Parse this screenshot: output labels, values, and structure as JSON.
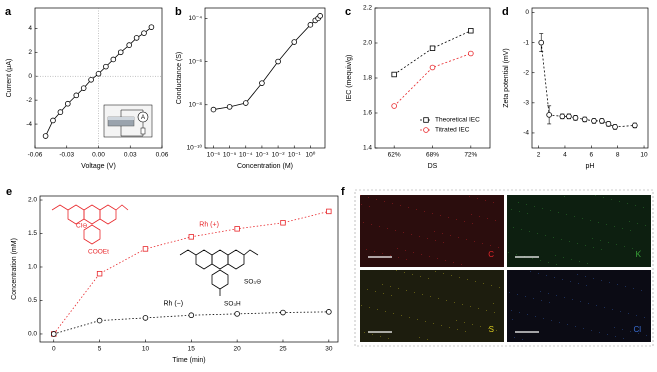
{
  "chart_data": [
    {
      "type": "line",
      "panel": "a",
      "xlabel": "Voltage (V)",
      "ylabel": "Current (μA)",
      "x": [
        -0.05,
        -0.043,
        -0.036,
        -0.029,
        -0.021,
        -0.014,
        -0.007,
        0,
        0.007,
        0.014,
        0.021,
        0.029,
        0.036,
        0.043,
        0.05
      ],
      "values": [
        -5.0,
        -3.7,
        -3.0,
        -2.3,
        -1.6,
        -1.0,
        -0.3,
        0.2,
        0.8,
        1.4,
        2.0,
        2.6,
        3.2,
        3.6,
        4.1
      ],
      "color": "#000000",
      "marker": "circle",
      "dash": "none",
      "xlim": [
        -0.06,
        0.06
      ],
      "ylim": [
        -6,
        5.7
      ],
      "xticks": [
        -0.06,
        -0.03,
        {
          "value": 0,
          "label": "0.00"
        },
        0.03,
        0.06
      ],
      "yticks": [
        -4,
        -2,
        0,
        2,
        4
      ],
      "zero_lines": true
    },
    {
      "type": "line",
      "panel": "b",
      "xlabel": "Concentration (M)",
      "ylabel": "Conductance (S)",
      "x": [
        1e-06,
        1e-05,
        0.0001,
        0.001,
        0.01,
        0.1,
        1,
        2,
        3,
        4
      ],
      "values": [
        6e-09,
        8e-09,
        1.2e-08,
        1e-07,
        1e-06,
        8e-06,
        5e-05,
        8e-05,
        0.0001,
        0.00013
      ],
      "color": "#000000",
      "marker": "circle",
      "dash": "none",
      "xlog": true,
      "ylog": true,
      "xlim": [
        3e-07,
        8
      ],
      "ylim": [
        1e-10,
        0.0003
      ],
      "xticks": [
        {
          "value": 1e-06,
          "label": "10⁻⁶"
        },
        {
          "value": 1e-05,
          "label": "10⁻⁵"
        },
        {
          "value": 0.0001,
          "label": "10⁻⁴"
        },
        {
          "value": 0.001,
          "label": "10⁻³"
        },
        {
          "value": 0.01,
          "label": "10⁻²"
        },
        {
          "value": 0.1,
          "label": "10⁻¹"
        },
        {
          "value": 1,
          "label": "10⁰"
        }
      ],
      "yticks": [
        {
          "value": 1e-10,
          "label": "10⁻¹⁰"
        },
        {
          "value": 1e-08,
          "label": "10⁻⁸"
        },
        {
          "value": 1e-06,
          "label": "10⁻⁶"
        },
        {
          "value": 0.0001,
          "label": "10⁻⁴"
        }
      ]
    },
    {
      "type": "line",
      "panel": "c",
      "xlabel": "DS",
      "ylabel": "IEC (mequiv/g)",
      "categories": [
        "62%",
        "68%",
        "72%"
      ],
      "series": [
        {
          "name": "Theoretical IEC",
          "color": "#000000",
          "marker": "square",
          "dash": "2,2",
          "values": [
            1.82,
            1.97,
            2.07
          ]
        },
        {
          "name": "Titrated IEC",
          "color": "#e8262a",
          "marker": "circle",
          "dash": "2,2",
          "values": [
            1.64,
            1.86,
            1.94
          ]
        }
      ],
      "ylim": [
        1.4,
        2.2
      ],
      "yticks": [
        1.4,
        1.6,
        1.8,
        {
          "value": 2,
          "label": "2.0"
        },
        2.2
      ],
      "legend": "lower-right"
    },
    {
      "type": "line",
      "panel": "d",
      "xlabel": "pH",
      "ylabel": "Zeta potential (mV)",
      "x": [
        2.2,
        2.8,
        3.8,
        4.3,
        4.8,
        5.5,
        6.2,
        6.8,
        7.3,
        7.8,
        9.3
      ],
      "values": [
        -1.0,
        -3.4,
        -3.45,
        -3.45,
        -3.5,
        -3.55,
        -3.6,
        -3.6,
        -3.7,
        -3.8,
        -3.75
      ],
      "errors": [
        0.3,
        0.3,
        0.08,
        0.08,
        0.08,
        0.08,
        0.08,
        0.08,
        0.08,
        0.08,
        0.08
      ],
      "color": "#000000",
      "marker": "circle",
      "dash": "2,2",
      "xlim": [
        1.5,
        10.3
      ],
      "ylim": [
        -4.5,
        0.15
      ],
      "xticks": [
        2,
        4,
        6,
        8,
        10
      ],
      "yticks": [
        0,
        -1,
        -2,
        -3,
        -4
      ]
    },
    {
      "type": "line",
      "panel": "e",
      "xlabel": "Time (min)",
      "ylabel": "Concentration (mM)",
      "x": [
        0,
        5,
        10,
        15,
        20,
        25,
        30
      ],
      "series": [
        {
          "name": "Rh (+)",
          "color": "#e8262a",
          "marker": "square",
          "dash": "1.5,2",
          "values": [
            0,
            0.9,
            1.27,
            1.45,
            1.57,
            1.66,
            1.83
          ]
        },
        {
          "name": "Rh (−)",
          "color": "#000000",
          "marker": "circle",
          "dash": "1.5,2",
          "values": [
            0,
            0.2,
            0.24,
            0.28,
            0.3,
            0.32,
            0.33
          ]
        }
      ],
      "xlim": [
        -1.5,
        31
      ],
      "ylim": [
        -0.12,
        2.06
      ],
      "xticks": [
        0,
        5,
        10,
        15,
        20,
        25,
        30
      ],
      "yticks": [
        {
          "value": 0,
          "label": "0.0"
        },
        0.5,
        {
          "value": 1,
          "label": "1.0"
        },
        1.5,
        {
          "value": 2,
          "label": "2.0"
        }
      ],
      "legend": "inline",
      "annotations": [
        "COOEt",
        "Cl⊖",
        "SO₃⊖",
        "SO₃H"
      ]
    }
  ],
  "panel_f": {
    "panel": "f",
    "maps": [
      "C",
      "K",
      "S",
      "Cl"
    ]
  }
}
